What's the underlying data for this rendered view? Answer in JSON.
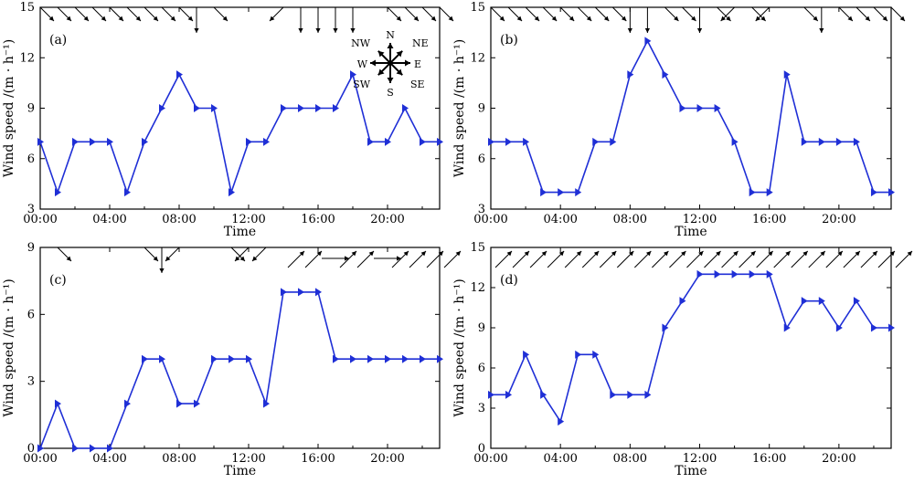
{
  "figure": {
    "series_color": "#1f2fd6",
    "arrow_color": "#000000",
    "compass": {
      "N": "N",
      "NE": "NE",
      "E": "E",
      "SE": "SE",
      "S": "S",
      "SW": "SW",
      "W": "W",
      "NW": "NW"
    }
  },
  "chart_data": [
    {
      "type": "line",
      "panel": "(a)",
      "xlabel": "Time",
      "ylabel": "Wind speed /(m · h⁻¹)",
      "xlim": [
        0,
        23
      ],
      "ylim": [
        3,
        15
      ],
      "xticks": [
        0,
        4,
        8,
        12,
        16,
        20
      ],
      "xtick_labels": [
        "00:00",
        "04:00",
        "08:00",
        "12:00",
        "16:00",
        "20:00"
      ],
      "yticks": [
        3,
        6,
        9,
        12,
        15
      ],
      "x": [
        0,
        1,
        2,
        3,
        4,
        5,
        6,
        7,
        8,
        9,
        10,
        11,
        12,
        13,
        14,
        15,
        16,
        17,
        18,
        19,
        20,
        21,
        22,
        23
      ],
      "values": [
        7,
        4,
        7,
        7,
        7,
        4,
        7,
        9,
        11,
        9,
        9,
        4,
        7,
        7,
        9,
        9,
        9,
        9,
        11,
        7,
        7,
        9,
        7,
        7
      ],
      "wind_dir_deg": [
        315,
        315,
        315,
        315,
        315,
        315,
        315,
        315,
        315,
        0,
        315,
        null,
        null,
        null,
        225,
        0,
        0,
        0,
        0,
        null,
        315,
        315,
        315,
        315
      ]
    },
    {
      "type": "line",
      "panel": "(b)",
      "xlabel": "Time",
      "ylabel": "Wind speed /(m · h⁻¹)",
      "xlim": [
        0,
        23
      ],
      "ylim": [
        3,
        15
      ],
      "xticks": [
        0,
        4,
        8,
        12,
        16,
        20
      ],
      "xtick_labels": [
        "00:00",
        "04:00",
        "08:00",
        "12:00",
        "16:00",
        "20:00"
      ],
      "yticks": [
        3,
        6,
        9,
        12,
        15
      ],
      "x": [
        0,
        1,
        2,
        3,
        4,
        5,
        6,
        7,
        8,
        9,
        10,
        11,
        12,
        13,
        14,
        15,
        16,
        17,
        18,
        19,
        20,
        21,
        22,
        23
      ],
      "values": [
        7,
        7,
        7,
        4,
        4,
        4,
        7,
        7,
        11,
        13,
        11,
        9,
        9,
        9,
        7,
        4,
        4,
        11,
        7,
        7,
        7,
        7,
        4,
        4
      ],
      "wind_dir_deg": [
        315,
        315,
        315,
        315,
        315,
        315,
        315,
        315,
        0,
        0,
        315,
        315,
        0,
        315,
        225,
        315,
        225,
        null,
        315,
        0,
        315,
        315,
        315,
        315
      ]
    },
    {
      "type": "line",
      "panel": "(c)",
      "xlabel": "Time",
      "ylabel": "Wind speed /(m · h⁻¹)",
      "xlim": [
        0,
        23
      ],
      "ylim": [
        0,
        9
      ],
      "xticks": [
        0,
        4,
        8,
        12,
        16,
        20
      ],
      "xtick_labels": [
        "00:00",
        "04:00",
        "08:00",
        "12:00",
        "16:00",
        "20:00"
      ],
      "yticks": [
        0,
        3,
        6,
        9
      ],
      "x": [
        0,
        1,
        2,
        3,
        4,
        5,
        6,
        7,
        8,
        9,
        10,
        11,
        12,
        13,
        14,
        15,
        16,
        17,
        18,
        19,
        20,
        21,
        22,
        23
      ],
      "values": [
        0,
        2,
        0,
        0,
        0,
        2,
        4,
        4,
        2,
        2,
        4,
        4,
        4,
        2,
        7,
        7,
        7,
        4,
        4,
        4,
        4,
        4,
        4,
        4
      ],
      "wind_dir_deg": [
        null,
        315,
        null,
        null,
        null,
        null,
        315,
        0,
        225,
        null,
        null,
        315,
        225,
        225,
        135,
        135,
        90,
        135,
        135,
        90,
        135,
        135,
        135,
        135
      ]
    },
    {
      "type": "line",
      "panel": "(d)",
      "xlabel": "Time",
      "ylabel": "Wind speed /(m · h⁻¹)",
      "xlim": [
        0,
        23
      ],
      "ylim": [
        0,
        15
      ],
      "xticks": [
        0,
        4,
        8,
        12,
        16,
        20
      ],
      "xtick_labels": [
        "00:00",
        "04:00",
        "08:00",
        "12:00",
        "16:00",
        "20:00"
      ],
      "yticks": [
        0,
        3,
        6,
        9,
        12,
        15
      ],
      "x": [
        0,
        1,
        2,
        3,
        4,
        5,
        6,
        7,
        8,
        9,
        10,
        11,
        12,
        13,
        14,
        15,
        16,
        17,
        18,
        19,
        20,
        21,
        22,
        23
      ],
      "values": [
        4,
        4,
        7,
        4,
        2,
        7,
        7,
        4,
        4,
        4,
        9,
        11,
        13,
        13,
        13,
        13,
        13,
        9,
        11,
        11,
        9,
        11,
        9,
        9
      ],
      "wind_dir_deg": [
        135,
        135,
        135,
        135,
        135,
        135,
        135,
        135,
        135,
        135,
        135,
        135,
        135,
        135,
        135,
        135,
        135,
        135,
        135,
        135,
        135,
        135,
        135,
        135
      ]
    }
  ]
}
